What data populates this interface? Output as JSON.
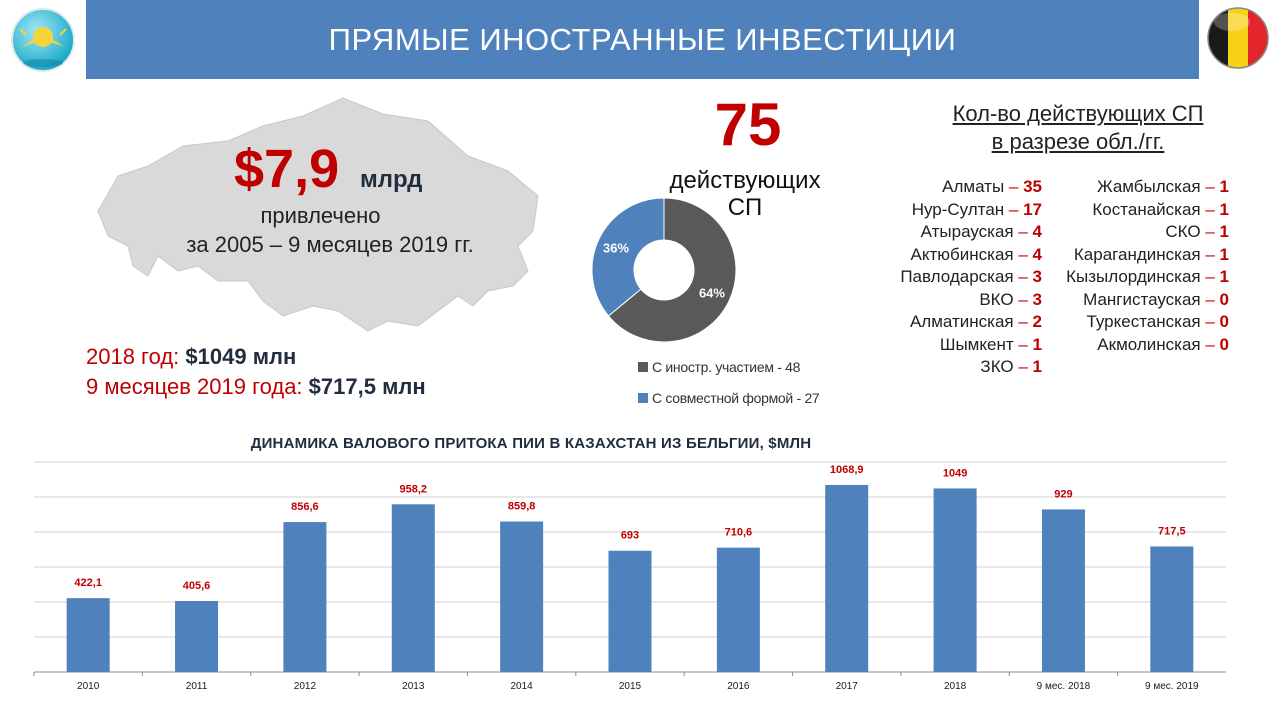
{
  "header": {
    "title": "ПРЯМЫЕ ИНОСТРАННЫЕ ИНВЕСТИЦИИ",
    "left_icon": "kazakhstan-emblem-icon",
    "right_icon": "belgium-flag-icon"
  },
  "summary": {
    "amount": "$7,9",
    "unit": "млрд",
    "attracted": "привлечено",
    "period": "за 2005 – 9 месяцев 2019 гг.",
    "year_2018_label": "2018 год:",
    "year_2018_value": "$1049 млн",
    "months_2019_label": "9 месяцев 2019 года:",
    "months_2019_value": "$717,5 млн"
  },
  "joint_ventures": {
    "count": "75",
    "label_line1": "действующих",
    "label_line2": "СП",
    "pie": {
      "slices": [
        {
          "name": "С иностр. участием - 48",
          "value": 64,
          "label": "64%",
          "color": "#595959"
        },
        {
          "name": "С совместной формой - 27",
          "value": 36,
          "label": "36%",
          "color": "#4f81bd"
        }
      ]
    }
  },
  "regions": {
    "title_line1": "Кол-во действующих СП",
    "title_line2": "в разрезе обл./гг.",
    "left": [
      {
        "name": "Алматы",
        "dash": "–",
        "count": "35"
      },
      {
        "name": "Нур-Султан",
        "dash": "–",
        "count": "17"
      },
      {
        "name": "Атырауская",
        "dash": "–",
        "count": "4"
      },
      {
        "name": "Актюбинская",
        "dash": "–",
        "count": "4"
      },
      {
        "name": "Павлодарская",
        "dash": "–",
        "count": "3"
      },
      {
        "name": "ВКО",
        "dash": "–",
        "count": "3"
      },
      {
        "name": "Алматинская",
        "dash": "–",
        "count": "2"
      },
      {
        "name": "Шымкент",
        "dash": "–",
        "count": "1"
      },
      {
        "name": "ЗКО",
        "dash": "–",
        "count": "1"
      }
    ],
    "right": [
      {
        "name": "Жамбылская",
        "dash": "–",
        "count": "1"
      },
      {
        "name": "Костанайская",
        "dash": "–",
        "count": "1"
      },
      {
        "name": "СКО",
        "dash": "–",
        "count": "1"
      },
      {
        "name": "Карагандинская",
        "dash": "–",
        "count": "1"
      },
      {
        "name": "Кызылординская",
        "dash": "–",
        "count": "1"
      },
      {
        "name": "Мангистауская",
        "dash": "–",
        "count": "0"
      },
      {
        "name": "Туркестанская",
        "dash": "–",
        "count": "0"
      },
      {
        "name": "Акмолинская",
        "dash": "–",
        "count": "0"
      }
    ]
  },
  "colors": {
    "accent_blue": "#4f81bd",
    "accent_red": "#c00000",
    "dark_gray": "#595959"
  },
  "chart_data": {
    "type": "bar",
    "title": "ДИНАМИКА ВАЛОВОГО ПРИТОКА ПИИ В КАЗАХСТАН ИЗ БЕЛЬГИИ, $МЛН",
    "categories": [
      "2010",
      "2011",
      "2012",
      "2013",
      "2014",
      "2015",
      "2016",
      "2017",
      "2018",
      "9 мес. 2018",
      "9 мес. 2019"
    ],
    "values": [
      422.1,
      405.6,
      856.6,
      958.2,
      859.8,
      693,
      710.6,
      1068.9,
      1049,
      929,
      717.5
    ],
    "data_labels": [
      "422,1",
      "405,6",
      "856,6",
      "958,2",
      "859,8",
      "693",
      "710,6",
      "1068,9",
      "1049",
      "929",
      "717,5"
    ],
    "ylim": [
      0,
      1200
    ],
    "grid": true,
    "bar_color": "#4f81bd",
    "label_color": "#c00000"
  }
}
